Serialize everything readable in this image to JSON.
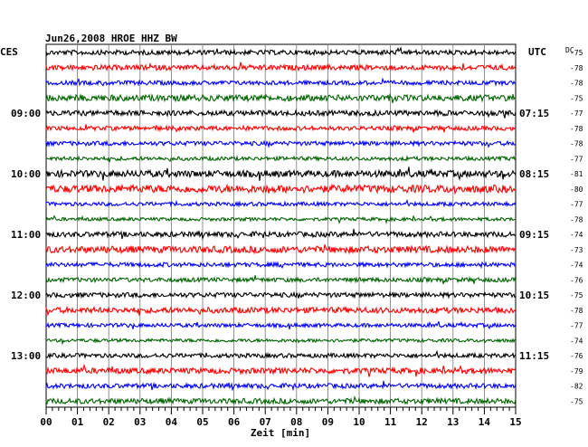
{
  "chart_data": {
    "type": "line",
    "title": "Jun26,2008   HROE HHZ BW",
    "left_timezone": "CES",
    "right_timezone": "UTC",
    "dc_label": "DC",
    "xlabel": "Zeit [min]",
    "xlim": [
      0,
      15
    ],
    "x_ticks": [
      "00",
      "01",
      "02",
      "03",
      "04",
      "05",
      "06",
      "07",
      "08",
      "09",
      "10",
      "11",
      "12",
      "13",
      "14",
      "15"
    ],
    "grid": true,
    "left_hour_labels": [
      {
        "row": 4,
        "label": "09:00"
      },
      {
        "row": 8,
        "label": "10:00"
      },
      {
        "row": 12,
        "label": "11:00"
      },
      {
        "row": 16,
        "label": "12:00"
      },
      {
        "row": 20,
        "label": "13:00"
      }
    ],
    "right_hour_labels": [
      {
        "row": 4,
        "label": "07:15"
      },
      {
        "row": 8,
        "label": "08:15"
      },
      {
        "row": 12,
        "label": "09:15"
      },
      {
        "row": 16,
        "label": "10:15"
      },
      {
        "row": 20,
        "label": "11:15"
      }
    ],
    "trace_colors": [
      "#000000",
      "#ff0000",
      "#0000ff",
      "#006400"
    ],
    "dc_offsets": [
      -75,
      -78,
      -78,
      -75,
      -77,
      -78,
      -78,
      -77,
      -81,
      -80,
      -77,
      -78,
      -74,
      -73,
      -74,
      -76,
      -75,
      -78,
      -77,
      -74,
      -76,
      -79,
      -82,
      -75
    ],
    "amplitude": [
      {
        "row": 0,
        "level": 1.0
      },
      {
        "row": 1,
        "level": 1.1
      },
      {
        "row": 2,
        "level": 0.9
      },
      {
        "row": 3,
        "level": 1.3
      },
      {
        "row": 4,
        "level": 1.1
      },
      {
        "row": 5,
        "level": 0.9
      },
      {
        "row": 6,
        "level": 0.9
      },
      {
        "row": 7,
        "level": 0.8
      },
      {
        "row": 8,
        "level": 1.4
      },
      {
        "row": 9,
        "level": 1.6
      },
      {
        "row": 10,
        "level": 0.8
      },
      {
        "row": 11,
        "level": 0.7
      },
      {
        "row": 12,
        "level": 1.1
      },
      {
        "row": 13,
        "level": 1.4
      },
      {
        "row": 14,
        "level": 0.9
      },
      {
        "row": 15,
        "level": 0.9
      },
      {
        "row": 16,
        "level": 1.0
      },
      {
        "row": 17,
        "level": 1.2
      },
      {
        "row": 18,
        "level": 0.8
      },
      {
        "row": 19,
        "level": 0.7
      },
      {
        "row": 20,
        "level": 0.9
      },
      {
        "row": 21,
        "level": 1.2
      },
      {
        "row": 22,
        "level": 1.0
      },
      {
        "row": 23,
        "level": 1.1
      }
    ]
  }
}
